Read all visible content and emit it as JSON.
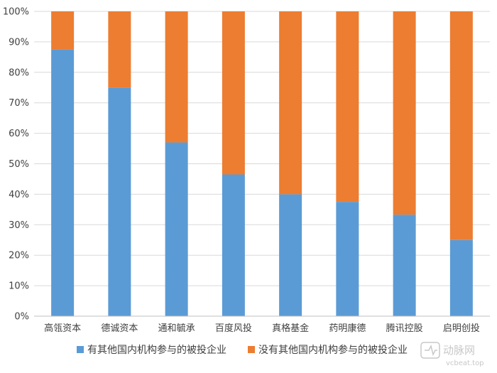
{
  "chart_data": {
    "type": "bar",
    "stacked": true,
    "percent_stacked": true,
    "categories": [
      "高瓴资本",
      "德诚资本",
      "通和毓承",
      "百度风投",
      "真格基金",
      "药明康德",
      "腾讯控股",
      "启明创投"
    ],
    "series": [
      {
        "name": "有其他国内机构参与的被投企业",
        "color": "#5b9bd5",
        "values": [
          87.5,
          75,
          57,
          46.5,
          40,
          37.5,
          33.3,
          25
        ]
      },
      {
        "name": "没有其他国内机构参与的被投企业",
        "color": "#ed7d31",
        "values": [
          12.5,
          25,
          43,
          53.5,
          60,
          62.5,
          66.7,
          75
        ]
      }
    ],
    "y_ticks": [
      "0%",
      "10%",
      "20%",
      "30%",
      "40%",
      "50%",
      "60%",
      "70%",
      "80%",
      "90%",
      "100%"
    ],
    "ylim": [
      0,
      100
    ],
    "grid": true,
    "legend_position": "bottom"
  },
  "watermark": {
    "name": "动脉网",
    "url": "vcbeat.top"
  }
}
